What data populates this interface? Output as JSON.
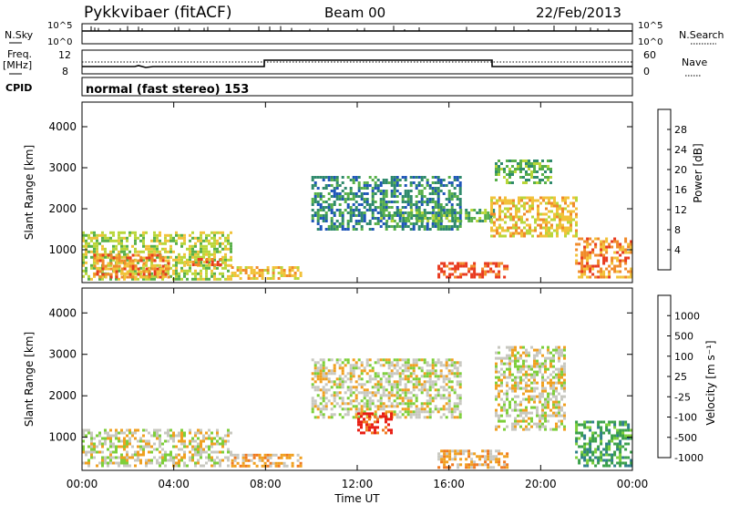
{
  "header": {
    "station": "Pykkvibaer (fitACF)",
    "beam": "Beam 00",
    "date": "22/Feb/2013"
  },
  "strips": {
    "nsky_label": "N.Sky",
    "nsearch_label": "N.Search",
    "nsky_ticks": [
      "10^5",
      "10^0"
    ],
    "nsearch_ticks": [
      "10^5",
      "10^0"
    ],
    "freq_label_1": "Freq.",
    "freq_label_2": "[MHz]",
    "freq_ticks": [
      "12",
      "8"
    ],
    "nave_label": "Nave",
    "nave_ticks": [
      "60",
      "0"
    ],
    "cpid_label": "CPID",
    "cpid_text": "normal (fast stereo) 153"
  },
  "chart_data": [
    {
      "type": "heatmap",
      "name": "power",
      "ylabel": "Slant Range [km]",
      "yticks": [
        "1000",
        "2000",
        "3000",
        "4000"
      ],
      "ylim": [
        200,
        4600
      ],
      "colorbar_label": "Power [dB]",
      "colorbar_ticks": [
        "4",
        "8",
        "12",
        "16",
        "20",
        "24",
        "28"
      ],
      "colors": [
        "#0a2bff",
        "#1f56b8",
        "#2f8a6c",
        "#58b04a",
        "#b9d63a",
        "#f2c23a",
        "#f08a2a",
        "#e83a1f"
      ],
      "regions": [
        {
          "t0": 0.0,
          "t1": 6.5,
          "r0": 250,
          "r1": 1450,
          "level": 4
        },
        {
          "t0": 0.5,
          "t1": 3.8,
          "r0": 300,
          "r1": 900,
          "level": 6
        },
        {
          "t0": 4.2,
          "t1": 6.0,
          "r0": 600,
          "r1": 800,
          "level": 6
        },
        {
          "t0": 6.5,
          "t1": 9.5,
          "r0": 300,
          "r1": 600,
          "level": 5
        },
        {
          "t0": 10.0,
          "t1": 16.5,
          "r0": 1500,
          "r1": 2800,
          "level": 2
        },
        {
          "t0": 13.0,
          "t1": 18.0,
          "r0": 1700,
          "r1": 2000,
          "level": 3
        },
        {
          "t0": 15.5,
          "t1": 18.5,
          "r0": 300,
          "r1": 700,
          "level": 7
        },
        {
          "t0": 17.8,
          "t1": 21.5,
          "r0": 1300,
          "r1": 2300,
          "level": 5
        },
        {
          "t0": 18.0,
          "t1": 20.5,
          "r0": 2600,
          "r1": 3200,
          "level": 3
        },
        {
          "t0": 21.5,
          "t1": 24.0,
          "r0": 300,
          "r1": 1300,
          "level": 6
        }
      ]
    },
    {
      "type": "heatmap",
      "name": "velocity",
      "ylabel": "Slant Range [km]",
      "yticks": [
        "1000",
        "2000",
        "3000",
        "4000"
      ],
      "ylim": [
        200,
        4600
      ],
      "colorbar_label": "Velocity [m s⁻¹]",
      "colorbar_ticks": [
        "1000",
        "500",
        "100",
        "25",
        "-25",
        "-100",
        "-500",
        "-1000"
      ],
      "colors": [
        "#1f3fc8",
        "#2f7f8a",
        "#3aa04a",
        "#7dcf3a",
        "#c8c8c0",
        "#f0a020",
        "#f07a20",
        "#e81e14"
      ],
      "regions": [
        {
          "t0": 0.0,
          "t1": 6.5,
          "r0": 300,
          "r1": 1200,
          "level": 4
        },
        {
          "t0": 6.5,
          "t1": 9.5,
          "r0": 300,
          "r1": 600,
          "level": 5
        },
        {
          "t0": 10.0,
          "t1": 16.5,
          "r0": 1500,
          "r1": 2900,
          "level": 4
        },
        {
          "t0": 12.0,
          "t1": 13.5,
          "r0": 1100,
          "r1": 1600,
          "level": 7
        },
        {
          "t0": 15.5,
          "t1": 18.5,
          "r0": 300,
          "r1": 700,
          "level": 5
        },
        {
          "t0": 18.0,
          "t1": 21.0,
          "r0": 1200,
          "r1": 3200,
          "level": 4
        },
        {
          "t0": 21.5,
          "t1": 24.0,
          "r0": 300,
          "r1": 1400,
          "level": 2
        }
      ]
    }
  ],
  "xaxis": {
    "ticks": [
      "00:00",
      "04:00",
      "08:00",
      "12:00",
      "16:00",
      "20:00",
      "00:00"
    ],
    "label": "Time UT",
    "xlim": [
      0,
      24
    ]
  }
}
